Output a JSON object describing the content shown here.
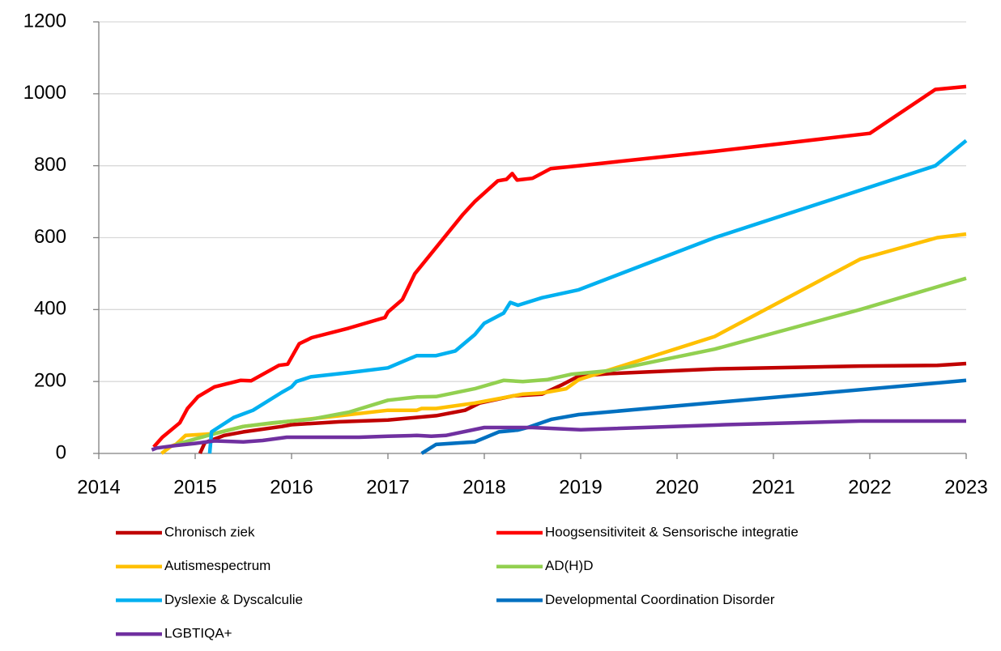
{
  "chart_data": {
    "type": "line",
    "xlim": [
      2014,
      2023
    ],
    "xticks": [
      2014,
      2015,
      2016,
      2017,
      2018,
      2019,
      2020,
      2021,
      2022,
      2023
    ],
    "ylim": [
      0,
      1200
    ],
    "yticks": [
      0,
      200,
      400,
      600,
      800,
      1000,
      1200
    ],
    "grid": true,
    "legend": "bottom",
    "series": [
      {
        "name": "Chronisch ziek",
        "color": "#c00000",
        "x": [
          2015.05,
          2015.1,
          2015.3,
          2015.5,
          2015.9,
          2016.0,
          2016.5,
          2017.0,
          2017.5,
          2017.8,
          2017.95,
          2018.3,
          2018.6,
          2018.8,
          2018.98,
          2019.3,
          2020.4,
          2021.9,
          2022.7,
          2023.0
        ],
        "values": [
          0,
          30,
          50,
          60,
          75,
          80,
          88,
          93,
          105,
          120,
          140,
          160,
          165,
          190,
          215,
          222,
          235,
          243,
          245,
          250
        ]
      },
      {
        "name": "Hoogsensitiviteit & Sensorische integratie",
        "color": "#ff0000",
        "x": [
          2014.57,
          2014.66,
          2014.84,
          2014.92,
          2015.03,
          2015.2,
          2015.47,
          2015.58,
          2015.87,
          2015.96,
          2016.08,
          2016.21,
          2016.59,
          2016.97,
          2017.0,
          2017.15,
          2017.28,
          2017.78,
          2017.9,
          2018.14,
          2018.23,
          2018.29,
          2018.34,
          2018.5,
          2018.69,
          2018.98,
          2020.39,
          2022.0,
          2022.68,
          2023.0
        ],
        "values": [
          18,
          45,
          85,
          125,
          158,
          185,
          203,
          202,
          245,
          248,
          305,
          322,
          348,
          378,
          393,
          428,
          500,
          665,
          700,
          758,
          762,
          778,
          760,
          765,
          792,
          800,
          840,
          890,
          1012,
          1020
        ]
      },
      {
        "name": "Autismespectrum",
        "color": "#ffc000",
        "x": [
          2014.65,
          2014.75,
          2014.8,
          2014.9,
          2015.2,
          2015.5,
          2016.0,
          2016.5,
          2017.0,
          2017.3,
          2017.35,
          2017.5,
          2017.9,
          2018.4,
          2018.6,
          2018.85,
          2018.98,
          2020.39,
          2021.9,
          2022.7,
          2023.0
        ],
        "values": [
          0,
          20,
          25,
          50,
          55,
          75,
          90,
          105,
          120,
          120,
          125,
          125,
          140,
          165,
          168,
          180,
          205,
          325,
          540,
          600,
          610
        ]
      },
      {
        "name": "AD(H)D",
        "color": "#92d050",
        "x": [
          2014.8,
          2015.0,
          2015.2,
          2015.5,
          2015.8,
          2016.2,
          2016.6,
          2017.0,
          2017.3,
          2017.5,
          2017.9,
          2018.2,
          2018.4,
          2018.65,
          2018.9,
          2019.3,
          2020.39,
          2021.9,
          2023.0
        ],
        "values": [
          25,
          40,
          55,
          75,
          85,
          95,
          115,
          148,
          157,
          158,
          180,
          203,
          200,
          205,
          220,
          230,
          290,
          400,
          487
        ]
      },
      {
        "name": "Dyslexie & Dyscalculie",
        "color": "#00b0f0",
        "x": [
          2015.15,
          2015.17,
          2015.4,
          2015.6,
          2015.9,
          2016.0,
          2016.05,
          2016.2,
          2016.6,
          2017.0,
          2017.3,
          2017.5,
          2017.7,
          2017.9,
          2018.0,
          2018.2,
          2018.27,
          2018.35,
          2018.6,
          2018.98,
          2020.39,
          2022.68,
          2023.0
        ],
        "values": [
          0,
          60,
          100,
          120,
          170,
          185,
          200,
          213,
          225,
          238,
          272,
          272,
          285,
          330,
          362,
          390,
          420,
          412,
          433,
          455,
          600,
          800,
          870
        ]
      },
      {
        "name": "Developmental Coordination Disorder",
        "color": "#0070c0",
        "x": [
          2017.35,
          2017.5,
          2017.9,
          2018.15,
          2018.35,
          2018.45,
          2018.7,
          2018.98,
          2023.0
        ],
        "values": [
          0,
          25,
          32,
          60,
          65,
          72,
          95,
          108,
          203
        ]
      },
      {
        "name": "LGBTIQA+",
        "color": "#7030a0",
        "x": [
          2014.55,
          2014.6,
          2014.8,
          2015.0,
          2015.2,
          2015.5,
          2015.7,
          2015.95,
          2016.2,
          2016.7,
          2017.0,
          2017.3,
          2017.45,
          2017.6,
          2018.0,
          2018.5,
          2019.0,
          2020.5,
          2021.9,
          2023.0
        ],
        "values": [
          10,
          15,
          22,
          28,
          35,
          32,
          36,
          45,
          45,
          45,
          48,
          50,
          48,
          50,
          72,
          72,
          66,
          80,
          90,
          90
        ]
      }
    ]
  }
}
